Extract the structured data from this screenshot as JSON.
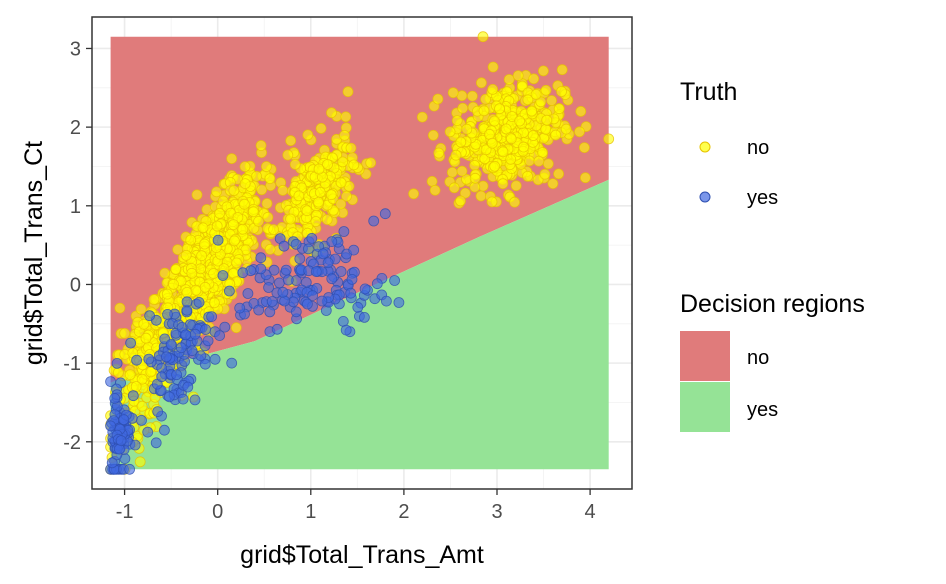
{
  "chart_data": {
    "type": "scatter",
    "xlabel": "grid$Total_Trans_Amt",
    "ylabel": "grid$Total_Trans_Ct",
    "xlim": [
      -1.35,
      4.45
    ],
    "ylim": [
      -2.6,
      3.4
    ],
    "x_ticks": [
      -1,
      0,
      1,
      2,
      3,
      4
    ],
    "y_ticks": [
      -2,
      -1,
      0,
      1,
      2,
      3
    ],
    "x_tick_labels": [
      "-1",
      "0",
      "1",
      "2",
      "3",
      "4"
    ],
    "y_tick_labels": [
      "-2",
      "-1",
      "0",
      "1",
      "2",
      "3"
    ],
    "grid": true,
    "decision_regions": {
      "title": "Decision regions",
      "x_range": [
        -1.15,
        4.2
      ],
      "y_range": [
        -2.35,
        3.15
      ],
      "boundary": {
        "x": [
          -1.15,
          -0.95,
          0.4,
          1.6,
          2.8,
          4.2
        ],
        "y": [
          -1.25,
          -1.15,
          -0.72,
          -0.05,
          0.6,
          1.33
        ]
      },
      "entries": [
        {
          "label": "no",
          "color": "#E07B7B"
        },
        {
          "label": "yes",
          "color": "#95E396"
        }
      ]
    },
    "truth": {
      "title": "Truth",
      "series": [
        {
          "name": "no",
          "color": "#FFFF00",
          "stroke": "#E6C200",
          "clusters": [
            {
              "cx": -0.1,
              "cy": 0.2,
              "sx": 0.28,
              "sy": 0.55,
              "rho": 0.78,
              "n": 900
            },
            {
              "cx": -0.75,
              "cy": -1.0,
              "sx": 0.18,
              "sy": 0.45,
              "rho": 0.6,
              "n": 220
            },
            {
              "cx": 1.05,
              "cy": 1.15,
              "sx": 0.2,
              "sy": 0.35,
              "rho": 0.5,
              "n": 260
            },
            {
              "cx": 3.1,
              "cy": 1.9,
              "sx": 0.3,
              "sy": 0.35,
              "rho": 0.2,
              "n": 420
            }
          ],
          "extra_points": [
            [
              2.85,
              3.15
            ],
            [
              4.2,
              1.85
            ],
            [
              1.4,
              2.45
            ],
            [
              -1.05,
              -0.3
            ],
            [
              0.15,
              1.6
            ],
            [
              -0.4,
              -0.9
            ],
            [
              3.9,
              2.2
            ],
            [
              0.2,
              -0.55
            ]
          ]
        },
        {
          "name": "yes",
          "color": "#4169E1",
          "stroke": "#2E4FB0",
          "clusters": [
            {
              "cx": -1.05,
              "cy": -1.85,
              "sx": 0.06,
              "sy": 0.35,
              "rho": 0.1,
              "n": 80
            },
            {
              "cx": -0.45,
              "cy": -0.9,
              "sx": 0.2,
              "sy": 0.35,
              "rho": 0.4,
              "n": 110
            },
            {
              "cx": 1.2,
              "cy": 0.1,
              "sx": 0.3,
              "sy": 0.3,
              "rho": -0.2,
              "n": 90
            },
            {
              "cx": 0.5,
              "cy": -0.15,
              "sx": 0.25,
              "sy": 0.2,
              "rho": 0.0,
              "n": 40
            }
          ],
          "extra_points": [
            [
              1.42,
              -0.6
            ],
            [
              1.38,
              -0.58
            ],
            [
              1.8,
              0.9
            ],
            [
              0.02,
              -0.65
            ],
            [
              0.15,
              -1.0
            ],
            [
              1.9,
              0.05
            ],
            [
              0.7,
              -0.1
            ]
          ]
        }
      ]
    }
  }
}
